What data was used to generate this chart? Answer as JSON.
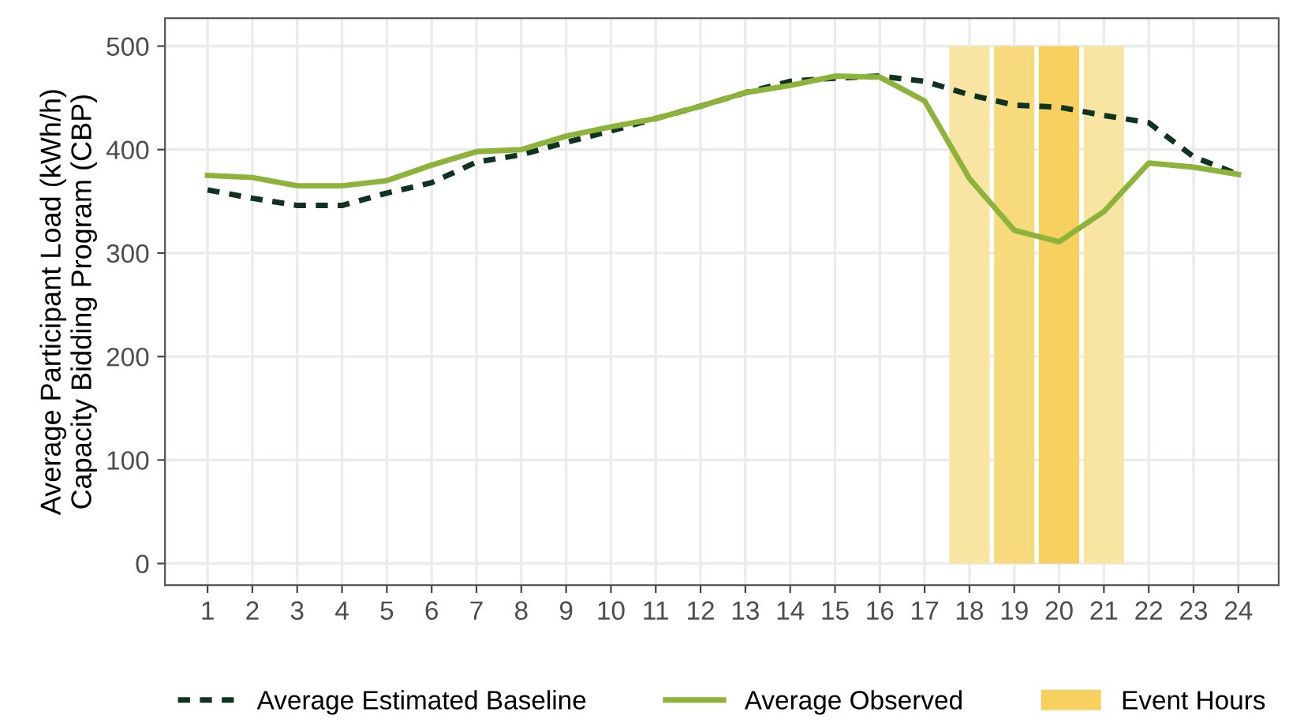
{
  "chart_data": {
    "type": "line",
    "ylabel": "Average Participant Load (kWh/h)\nCapacity Bidding Program (CBP)",
    "x": [
      1,
      2,
      3,
      4,
      5,
      6,
      7,
      8,
      9,
      10,
      11,
      12,
      13,
      14,
      15,
      16,
      17,
      18,
      19,
      20,
      21,
      22,
      23,
      24
    ],
    "series": [
      {
        "name": "Average Estimated Baseline",
        "color": "#0f3320",
        "line_style": "dashed",
        "values": [
          361,
          353,
          346,
          346,
          358,
          368,
          388,
          395,
          407,
          418,
          430,
          442,
          455,
          466,
          469,
          471,
          466,
          453,
          443,
          441,
          433,
          426,
          393,
          376
        ]
      },
      {
        "name": "Average Observed",
        "color": "#8db33a",
        "line_style": "solid",
        "values": [
          375,
          373,
          365,
          365,
          370,
          385,
          398,
          400,
          413,
          422,
          430,
          442,
          455,
          462,
          471,
          470,
          447,
          372,
          322,
          311,
          340,
          387,
          383,
          376
        ]
      }
    ],
    "bands": [
      {
        "axis": "x",
        "from": 17.55,
        "to": 18.45,
        "color": "#f9e5a3"
      },
      {
        "axis": "x",
        "from": 18.55,
        "to": 19.45,
        "color": "#f8da7e"
      },
      {
        "axis": "x",
        "from": 19.55,
        "to": 20.45,
        "color": "#f7d160",
        "label": "Event Hours"
      },
      {
        "axis": "x",
        "from": 20.55,
        "to": 21.45,
        "color": "#f9e5a3"
      }
    ],
    "xlim": [
      0.05,
      24.9
    ],
    "xticks": [
      1,
      2,
      3,
      4,
      5,
      6,
      7,
      8,
      9,
      10,
      11,
      12,
      13,
      14,
      15,
      16,
      17,
      18,
      19,
      20,
      21,
      22,
      23,
      24
    ],
    "ylim": [
      -21,
      527
    ],
    "yticks": [
      0,
      100,
      200,
      300,
      400,
      500
    ],
    "grid": true,
    "legend": "bottom"
  }
}
